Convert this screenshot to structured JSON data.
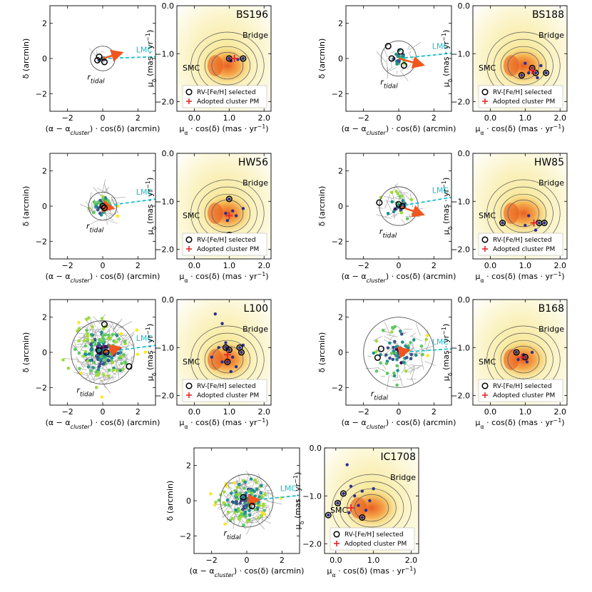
{
  "labels": {
    "sky_xlabel": "(α − α",
    "sky_xlabel_sub": "cluster",
    "sky_xlabel_end": ") · cos(δ) (arcmin)",
    "sky_ylabel": "δ (arcmin)",
    "pm_xlabel": "μ",
    "pm_xlabel_sub": "α",
    "pm_xlabel_end": " · cos(δ) (mas · yr",
    "pm_xlabel_sup": "−1",
    "pm_xlabel_close": ")",
    "pm_ylabel": "μ",
    "pm_ylabel_sub": "δ",
    "pm_ylabel_end": " (mas · yr",
    "pm_ylabel_sup": "−1",
    "pm_ylabel_close": ")",
    "r_tidal": "r",
    "r_tidal_sub": "tidal",
    "lmc": "LMC",
    "smc": "SMC",
    "bridge": "Bridge",
    "legend_selected": "RV-[Fe/H] selected",
    "legend_adopted": "Adopted cluster PM"
  },
  "colors": {
    "lmc": "#17c1cc",
    "arrow": "#f0561e",
    "adopted_marker": "#e8262b",
    "contour": "#555555",
    "vector": "#9a9a9a"
  },
  "chart_data": [
    {
      "cluster": "BS196",
      "type": "scatter",
      "sky_xlim": [
        -3,
        3
      ],
      "sky_ylim": [
        -3,
        3
      ],
      "sky_xticks": [
        -2,
        0,
        2
      ],
      "sky_yticks": [
        -2,
        0,
        2
      ],
      "pm_xlim": [
        -0.5,
        2.2
      ],
      "pm_ylim": [
        -2.2,
        0
      ],
      "pm_xticks": [
        0.0,
        1.0,
        2.0
      ],
      "pm_yticks": [
        -2.0,
        -1.0,
        0.0
      ],
      "tidal_radius": 0.7,
      "arrow": [
        1.0,
        0.3
      ],
      "lmc_dir": [
        3.0,
        0.1
      ],
      "n_stars": 6,
      "star_spread": 0.4,
      "selected_sky": [
        [
          -0.2,
          0.1
        ],
        [
          -0.3,
          -0.1
        ],
        [
          0.1,
          -0.2
        ]
      ],
      "adopted_pm": [
        1.15,
        -1.1
      ],
      "selected_pm": [
        [
          1.0,
          -1.1
        ],
        [
          1.4,
          -1.1
        ]
      ],
      "extra_pm": [
        [
          1.05,
          -1.15
        ],
        [
          1.25,
          -1.12
        ]
      ]
    },
    {
      "cluster": "BS188",
      "type": "scatter",
      "sky_xlim": [
        -3,
        3
      ],
      "sky_ylim": [
        -3,
        3
      ],
      "sky_xticks": [
        -2,
        0,
        2
      ],
      "sky_yticks": [
        -2,
        0,
        2
      ],
      "pm_xlim": [
        -0.5,
        2.2
      ],
      "pm_ylim": [
        -2.2,
        0
      ],
      "pm_xticks": [
        0.0,
        1.0,
        2.0
      ],
      "pm_yticks": [
        -2.0,
        -1.0,
        0.0
      ],
      "tidal_radius": 1.0,
      "arrow": [
        1.3,
        -0.35
      ],
      "lmc_dir": [
        3.0,
        0.3
      ],
      "n_stars": 20,
      "star_spread": 0.8,
      "selected_sky": [
        [
          -0.6,
          0.7
        ],
        [
          0.1,
          0.4
        ],
        [
          -0.4,
          0.0
        ],
        [
          0.3,
          -0.4
        ]
      ],
      "adopted_pm": [
        1.2,
        -1.35
      ],
      "selected_pm": [
        [
          0.9,
          -1.45
        ],
        [
          1.3,
          -1.4
        ],
        [
          1.6,
          -1.4
        ],
        [
          1.2,
          -1.3
        ]
      ],
      "extra_pm": [
        [
          1.0,
          -1.2
        ],
        [
          1.1,
          -1.4
        ],
        [
          1.35,
          -1.5
        ],
        [
          1.45,
          -1.25
        ]
      ]
    },
    {
      "cluster": "HW56",
      "type": "scatter",
      "sky_xlim": [
        -3,
        3
      ],
      "sky_ylim": [
        -3,
        3
      ],
      "sky_xticks": [
        -2,
        0,
        2
      ],
      "sky_yticks": [
        -2,
        0,
        2
      ],
      "pm_xlim": [
        -0.5,
        2.2
      ],
      "pm_ylim": [
        -2.2,
        0
      ],
      "pm_xticks": [
        0.0,
        1.0,
        2.0
      ],
      "pm_yticks": [
        -2.0,
        -1.0,
        0.0
      ],
      "tidal_radius": 0.8,
      "arrow": [
        0.5,
        -0.1
      ],
      "lmc_dir": [
        3.0,
        0.4
      ],
      "n_stars": 45,
      "star_spread": 0.8,
      "selected_sky": [
        [
          0.0,
          0.0
        ],
        [
          0.1,
          -0.1
        ]
      ],
      "adopted_pm": [
        1.0,
        -1.3
      ],
      "selected_pm": [
        [
          1.0,
          -0.95
        ],
        [
          1.0,
          -1.7
        ]
      ],
      "extra_pm": [
        [
          0.9,
          -1.25
        ],
        [
          1.1,
          -1.2
        ],
        [
          1.2,
          -1.3
        ],
        [
          0.95,
          -1.4
        ],
        [
          1.4,
          -1.15
        ]
      ]
    },
    {
      "cluster": "HW85",
      "type": "scatter",
      "sky_xlim": [
        -3,
        3
      ],
      "sky_ylim": [
        -3,
        3
      ],
      "sky_xticks": [
        -2,
        0,
        2
      ],
      "sky_yticks": [
        -2,
        0,
        2
      ],
      "pm_xlim": [
        -0.5,
        2.2
      ],
      "pm_ylim": [
        -2.2,
        0
      ],
      "pm_xticks": [
        0.0,
        1.0,
        2.0
      ],
      "pm_yticks": [
        -2.0,
        -1.0,
        0.0
      ],
      "tidal_radius": 1.1,
      "arrow": [
        1.3,
        -0.45
      ],
      "lmc_dir": [
        3.0,
        0.5
      ],
      "n_stars": 35,
      "star_spread": 0.9,
      "selected_sky": [
        [
          -1.1,
          0.2
        ],
        [
          0.0,
          0.1
        ],
        [
          0.2,
          0.0
        ]
      ],
      "adopted_pm": [
        1.25,
        -1.45
      ],
      "selected_pm": [
        [
          0.35,
          -1.45
        ],
        [
          1.4,
          -1.45
        ],
        [
          1.55,
          -1.45
        ],
        [
          1.2,
          -1.85
        ]
      ],
      "extra_pm": [
        [
          1.1,
          -1.3
        ],
        [
          1.0,
          -1.5
        ],
        [
          1.3,
          -1.6
        ]
      ]
    },
    {
      "cluster": "L100",
      "type": "scatter",
      "sky_xlim": [
        -3,
        3
      ],
      "sky_ylim": [
        -3,
        3
      ],
      "sky_xticks": [
        -2,
        0,
        2
      ],
      "sky_yticks": [
        -2,
        0,
        2
      ],
      "pm_xlim": [
        -0.5,
        2.2
      ],
      "pm_ylim": [
        -2.2,
        0
      ],
      "pm_xticks": [
        0.0,
        1.0,
        2.0
      ],
      "pm_yticks": [
        -2.0,
        -1.0,
        0.0
      ],
      "tidal_radius": 1.8,
      "arrow": [
        0.9,
        0.25
      ],
      "lmc_dir": [
        3.0,
        0.4
      ],
      "n_stars": 220,
      "star_spread": 1.7,
      "selected_sky": [
        [
          0.1,
          1.6
        ],
        [
          -0.2,
          0.1
        ],
        [
          0.2,
          0.0
        ],
        [
          1.5,
          -0.8
        ]
      ],
      "adopted_pm": [
        0.95,
        -1.15
      ],
      "selected_pm": [
        [
          0.9,
          -1.0
        ],
        [
          1.0,
          -1.05
        ],
        [
          0.95,
          -1.3
        ],
        [
          1.3,
          -1.0
        ],
        [
          1.35,
          -1.1
        ]
      ],
      "extra_pm": [
        [
          0.6,
          -0.3
        ],
        [
          0.8,
          -0.5
        ],
        [
          0.7,
          -1.0
        ],
        [
          1.1,
          -1.2
        ],
        [
          0.8,
          -1.3
        ],
        [
          1.2,
          -1.4
        ],
        [
          0.9,
          -0.9
        ],
        [
          1.05,
          -1.5
        ],
        [
          0.5,
          -1.2
        ],
        [
          1.4,
          -0.95
        ]
      ]
    },
    {
      "cluster": "B168",
      "type": "scatter",
      "sky_xlim": [
        -3,
        3
      ],
      "sky_ylim": [
        -3,
        3
      ],
      "sky_xticks": [
        -2,
        0,
        2
      ],
      "sky_yticks": [
        -2,
        0,
        2
      ],
      "pm_xlim": [
        -0.5,
        2.2
      ],
      "pm_ylim": [
        -2.2,
        0
      ],
      "pm_xticks": [
        0.0,
        1.0,
        2.0
      ],
      "pm_yticks": [
        -2.0,
        -1.0,
        0.0
      ],
      "tidal_radius": 2.0,
      "arrow": [
        0.5,
        0.1
      ],
      "lmc_dir": [
        3.0,
        0.2
      ],
      "n_stars": 70,
      "star_spread": 1.6,
      "selected_sky": [
        [
          -1.2,
          -0.3
        ],
        [
          -1.0,
          0.2
        ]
      ],
      "adopted_pm": [
        0.9,
        -1.2
      ],
      "selected_pm": [
        [
          0.75,
          -1.1
        ],
        [
          1.0,
          -1.2
        ]
      ],
      "extra_pm": [
        [
          0.8,
          -1.25
        ],
        [
          0.95,
          -1.15
        ],
        [
          1.05,
          -1.3
        ],
        [
          1.2,
          -1.1
        ]
      ]
    },
    {
      "cluster": "IC1708",
      "type": "scatter",
      "sky_xlim": [
        -3,
        3
      ],
      "sky_ylim": [
        -3,
        3
      ],
      "sky_xticks": [
        -2,
        0,
        2
      ],
      "sky_yticks": [
        -2,
        0,
        2
      ],
      "pm_xlim": [
        -0.3,
        2.2
      ],
      "pm_ylim": [
        -2.2,
        0
      ],
      "pm_xticks": [
        0.0,
        1.0,
        2.0
      ],
      "pm_yticks": [
        -2.0,
        -1.0,
        0.0
      ],
      "tidal_radius": 1.5,
      "arrow": [
        0.6,
        0.05
      ],
      "lmc_dir": [
        3.0,
        0.3
      ],
      "n_stars": 180,
      "star_spread": 1.3,
      "selected_sky": [
        [
          0.3,
          -0.3
        ],
        [
          -0.2,
          0.2
        ]
      ],
      "adopted_pm": [
        0.4,
        -1.25
      ],
      "selected_pm": [
        [
          -0.2,
          -1.4
        ],
        [
          0.05,
          -1.15
        ],
        [
          0.2,
          -0.95
        ],
        [
          0.7,
          -1.45
        ]
      ],
      "extra_pm": [
        [
          0.3,
          -0.35
        ],
        [
          0.4,
          -0.8
        ],
        [
          0.5,
          -1.0
        ],
        [
          0.7,
          -0.9
        ],
        [
          0.9,
          -1.1
        ],
        [
          0.6,
          -1.2
        ],
        [
          0.35,
          -1.35
        ],
        [
          1.0,
          -0.85
        ],
        [
          0.8,
          -1.3
        ]
      ]
    }
  ]
}
